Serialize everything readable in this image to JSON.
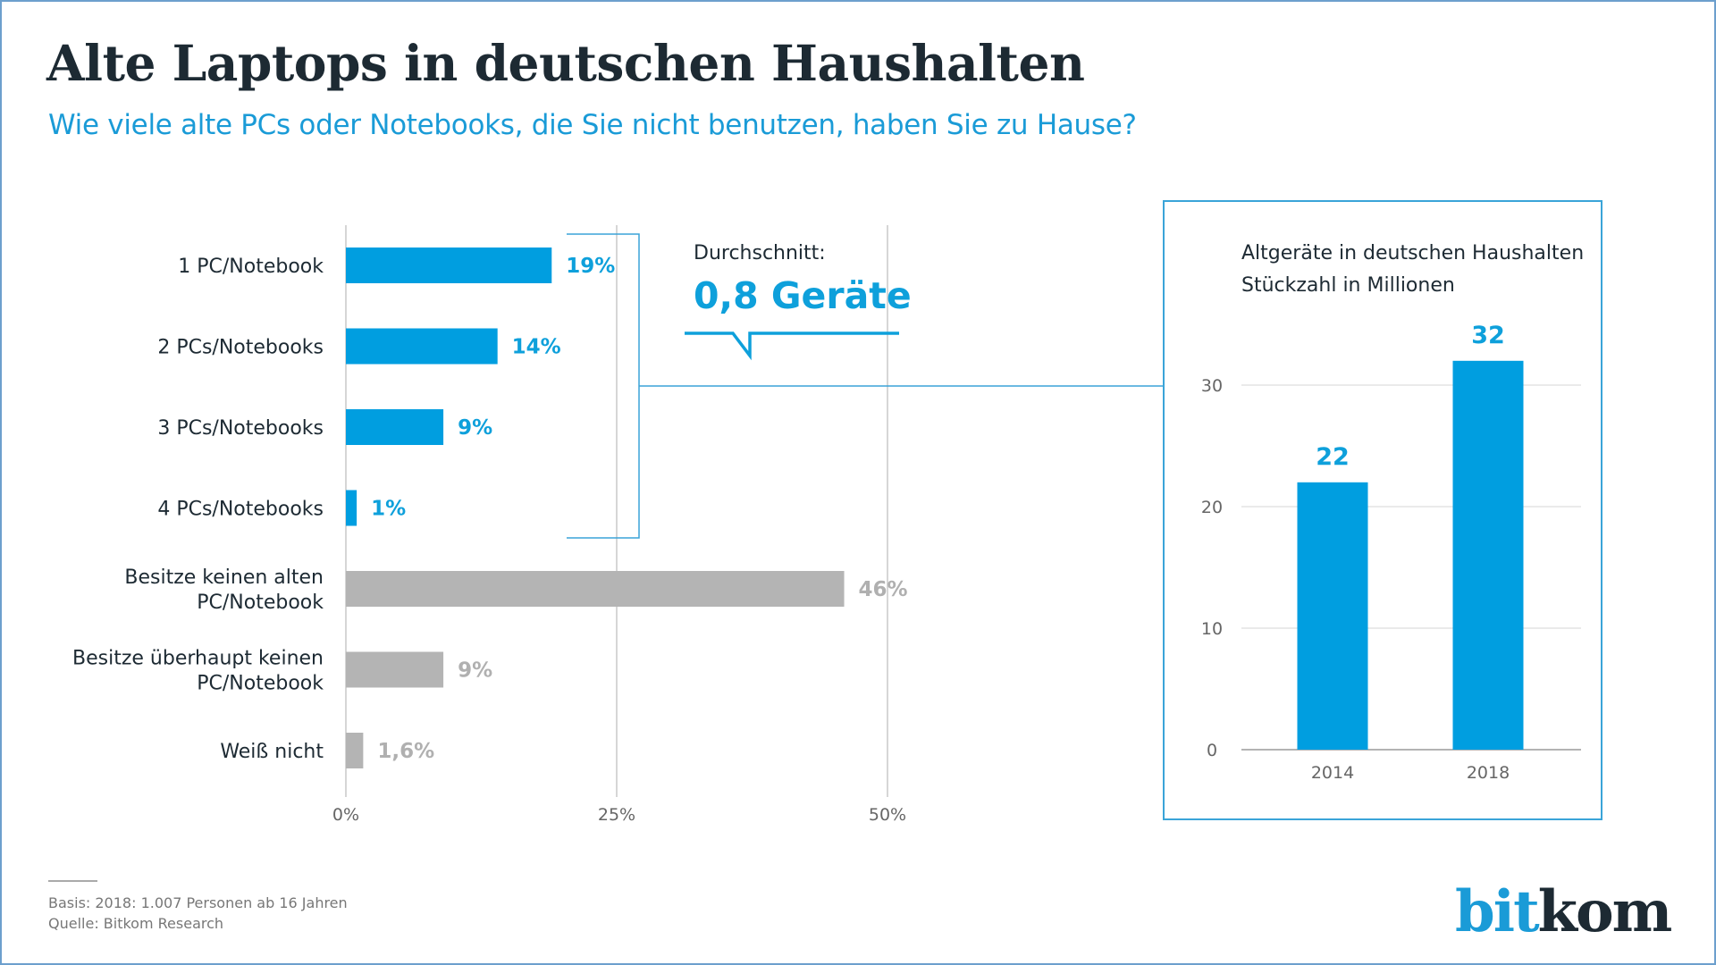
{
  "header": {
    "title": "Alte Laptops in deutschen Haushalten",
    "subtitle": "Wie viele alte PCs oder Notebooks, die Sie nicht benutzen, haben Sie zu Hause?"
  },
  "colors": {
    "accent": "#009ee0",
    "accent_text": "#0ea0db",
    "gray_bar": "#b4b4b4",
    "gray_text": "#b0b0b0",
    "dark_text": "#1d2a33",
    "gridline": "#c8c8c8"
  },
  "callout": {
    "heading": "Durchschnitt:",
    "value": "0,8 Geräte"
  },
  "chart_data": [
    {
      "type": "bar",
      "orientation": "horizontal",
      "title": "Wie viele alte PCs oder Notebooks, die Sie nicht benutzen, haben Sie zu Hause?",
      "xlabel": "",
      "ylabel": "",
      "xlim": [
        0,
        50
      ],
      "xticks": [
        0,
        25,
        50
      ],
      "xtick_labels": [
        "0%",
        "25%",
        "50%"
      ],
      "grid": true,
      "categories": [
        "1 PC/Notebook",
        "2 PCs/Notebooks",
        "3 PCs/Notebooks",
        "4 PCs/Notebooks",
        "Besitze keinen alten PC/Notebook",
        "Besitze überhaupt keinen PC/Notebook",
        "Weiß nicht"
      ],
      "category_lines": [
        [
          "1 PC/Notebook"
        ],
        [
          "2 PCs/Notebooks"
        ],
        [
          "3 PCs/Notebooks"
        ],
        [
          "4 PCs/Notebooks"
        ],
        [
          "Besitze keinen alten",
          "PC/Notebook"
        ],
        [
          "Besitze überhaupt keinen",
          "PC/Notebook"
        ],
        [
          "Weiß nicht"
        ]
      ],
      "values": [
        19,
        14,
        9,
        1,
        46,
        9,
        1.6
      ],
      "value_labels": [
        "19%",
        "14%",
        "9%",
        "1%",
        "46%",
        "9%",
        "1,6%"
      ],
      "highlight": [
        true,
        true,
        true,
        true,
        false,
        false,
        false
      ],
      "annotation": "Durchschnitt: 0,8 Geräte"
    },
    {
      "type": "bar",
      "orientation": "vertical",
      "title": "Altgeräte in deutschen Haushalten",
      "subtitle": "Stückzahl in Millionen",
      "categories": [
        "2014",
        "2018"
      ],
      "values": [
        22,
        32
      ],
      "value_labels": [
        "22",
        "32"
      ],
      "ylim": [
        0,
        33
      ],
      "yticks": [
        0,
        10,
        20,
        30
      ],
      "ytick_labels": [
        "0",
        "10",
        "20",
        "30"
      ],
      "grid": true,
      "xlabel": "",
      "ylabel": "Stückzahl in Millionen"
    }
  ],
  "footer": {
    "basis": "Basis: 2018: 1.007 Personen ab 16 Jahren",
    "source": "Quelle: Bitkom Research"
  },
  "logo": {
    "part1": "bit",
    "part2": "kom"
  }
}
